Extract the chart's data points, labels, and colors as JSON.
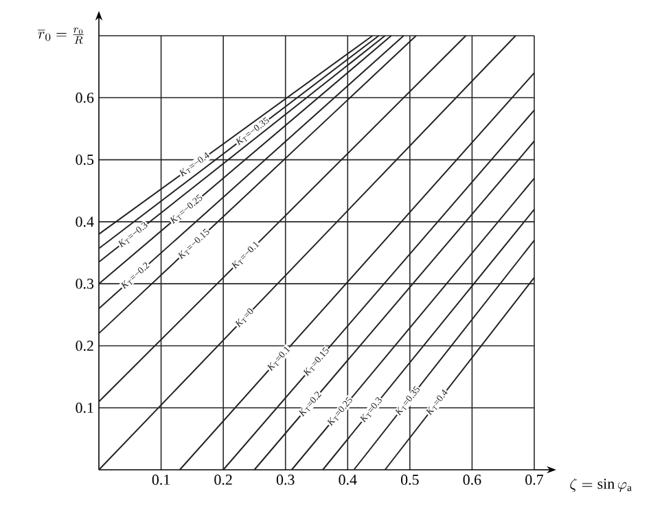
{
  "chart_data": {
    "type": "line",
    "xlabel": "\\zeta=\\sin\\varphi_{\\mathrm{a}}",
    "ylabel": "\\overline{r}_0=\\frac{r_0}{R}",
    "xlim": [
      0,
      0.7
    ],
    "ylim": [
      0,
      0.7
    ],
    "xticks": [
      0.1,
      0.2,
      0.3,
      0.4,
      0.5,
      0.6,
      0.7
    ],
    "yticks": [
      0.1,
      0.2,
      0.3,
      0.4,
      0.5,
      0.6,
      {
        "value": 0.7,
        "label": null
      }
    ],
    "grid": true,
    "line_style": "solid",
    "series": [
      {
        "name": "*K*$_{T}$=−0.4",
        "color": "#222222",
        "x": [
          0,
          0.44
        ],
        "values": [
          0.38,
          0.7
        ]
      },
      {
        "name": "*K*$_{T}$=−0.35",
        "color": "#222222",
        "x": [
          0,
          0.45
        ],
        "values": [
          0.357,
          0.7
        ]
      },
      {
        "name": "*K*$_{T}$=−0.3",
        "color": "#222222",
        "x": [
          0,
          0.46
        ],
        "values": [
          0.335,
          0.7
        ]
      },
      {
        "name": "*K*$_{T}$=−0.25",
        "color": "#222222",
        "x": [
          0,
          0.47
        ],
        "values": [
          0.3,
          0.7
        ]
      },
      {
        "name": "*K*$_{T}$=−0.2",
        "color": "#222222",
        "x": [
          0,
          0.49
        ],
        "values": [
          0.26,
          0.7
        ]
      },
      {
        "name": "*K*$_{T}$=−0.15",
        "color": "#222222",
        "x": [
          0,
          0.51
        ],
        "values": [
          0.22,
          0.7
        ]
      },
      {
        "name": "*K*$_{T}$=−0.1",
        "color": "#222222",
        "x": [
          0,
          0.59
        ],
        "values": [
          0.11,
          0.7
        ]
      },
      {
        "name": "*K*$_{T}$=0",
        "color": "#222222",
        "x": [
          0,
          0.67
        ],
        "values": [
          0,
          0.7
        ]
      },
      {
        "name": "*K*$_{T}$=0.1",
        "color": "#222222",
        "x": [
          0.13,
          0.7
        ],
        "values": [
          0,
          0.64
        ]
      },
      {
        "name": "*K*$_{T}$=0.15",
        "color": "#222222",
        "x": [
          0.2,
          0.7
        ],
        "values": [
          0,
          0.58
        ]
      },
      {
        "name": "*K*$_{T}$=0.2",
        "color": "#222222",
        "x": [
          0.25,
          0.7
        ],
        "values": [
          0,
          0.53
        ]
      },
      {
        "name": "*K*$_{T}$=0.25",
        "color": "#222222",
        "x": [
          0.31,
          0.7
        ],
        "values": [
          0,
          0.47
        ]
      },
      {
        "name": "*K*$_{T}$=0.3",
        "color": "#222222",
        "x": [
          0.36,
          0.7
        ],
        "values": [
          0,
          0.42
        ]
      },
      {
        "name": "*K*$_{T}$=0.35",
        "color": "#222222",
        "x": [
          0.41,
          0.7
        ],
        "values": [
          0,
          0.37
        ]
      },
      {
        "name": "*K*$_{T}$=0.4",
        "color": "#222222",
        "x": [
          0.46,
          0.7
        ],
        "values": [
          0,
          0.31
        ]
      }
    ]
  }
}
